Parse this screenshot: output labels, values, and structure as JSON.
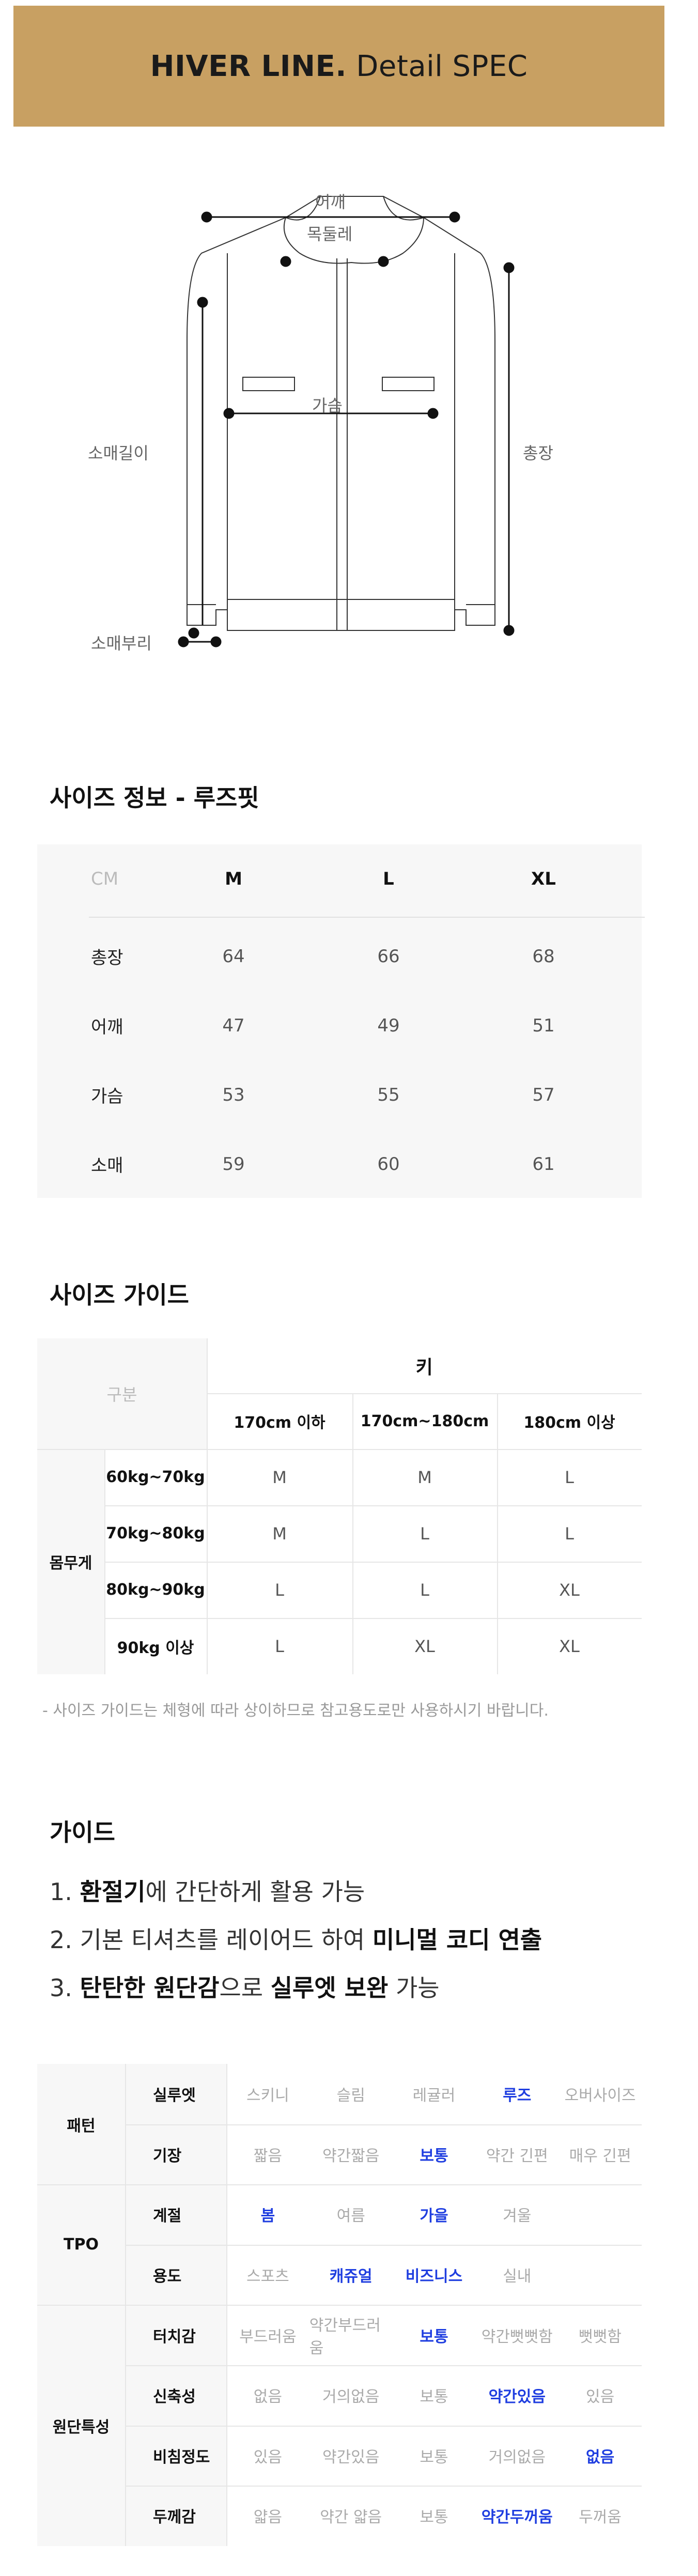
{
  "banner": {
    "brand": "HIVER LINE.",
    "title": "Detail SPEC",
    "color": "#c8a062"
  },
  "diagram": {
    "labels": {
      "shoulder": "어깨",
      "neck": "목둘레",
      "chest": "가슴",
      "sleeve_length": "소매길이",
      "total_length": "총장",
      "cuff": "소매부리"
    }
  },
  "size_info": {
    "title": "사이즈 정보 - 루즈핏",
    "unit": "CM",
    "columns": [
      "M",
      "L",
      "XL"
    ],
    "rows": [
      {
        "label": "총장",
        "values": [
          "64",
          "66",
          "68"
        ]
      },
      {
        "label": "어깨",
        "values": [
          "47",
          "49",
          "51"
        ]
      },
      {
        "label": "가슴",
        "values": [
          "53",
          "55",
          "57"
        ]
      },
      {
        "label": "소매",
        "values": [
          "59",
          "60",
          "61"
        ]
      }
    ]
  },
  "size_guide": {
    "title": "사이즈 가이드",
    "corner": "구분",
    "height_header": "키",
    "height_cols": [
      "170cm 이하",
      "170cm~180cm",
      "180cm 이상"
    ],
    "weight_header": "몸무게",
    "rows": [
      {
        "label": "60kg~70kg",
        "values": [
          "M",
          "M",
          "L"
        ]
      },
      {
        "label": "70kg~80kg",
        "values": [
          "M",
          "L",
          "L"
        ]
      },
      {
        "label": "80kg~90kg",
        "values": [
          "L",
          "L",
          "XL"
        ]
      },
      {
        "label": "90kg 이상",
        "values": [
          "L",
          "XL",
          "XL"
        ]
      }
    ],
    "note": "- 사이즈 가이드는 체형에 따라 상이하므로 참고용도로만 사용하시기 바랍니다."
  },
  "guide": {
    "title": "가이드",
    "items": [
      {
        "n": "1.",
        "parts": [
          {
            "t": "환절기",
            "b": true
          },
          {
            "t": "에 간단하게 활용 가능",
            "b": false
          }
        ]
      },
      {
        "n": "2.",
        "parts": [
          {
            "t": "기본 티셔츠를 레이어드 하여 ",
            "b": false
          },
          {
            "t": "미니멀 코디 연출",
            "b": true
          }
        ]
      },
      {
        "n": "3.",
        "parts": [
          {
            "t": "탄탄한 원단감",
            "b": true
          },
          {
            "t": "으로 ",
            "b": false
          },
          {
            "t": "실루엣 보완",
            "b": true
          },
          {
            "t": " 가능",
            "b": false
          }
        ]
      }
    ]
  },
  "features": {
    "highlight_color": "#1f3ee0",
    "groups": [
      {
        "name": "패턴",
        "rows": [
          0,
          1
        ]
      },
      {
        "name": "TPO",
        "rows": [
          2,
          3
        ]
      },
      {
        "name": "원단특성",
        "rows": [
          4,
          5,
          6,
          7
        ]
      }
    ],
    "rows": [
      {
        "label": "실루엣",
        "options": [
          "스키니",
          "슬림",
          "레귤러",
          "루즈",
          "오버사이즈"
        ],
        "selected": [
          3
        ]
      },
      {
        "label": "기장",
        "options": [
          "짧음",
          "약간짧음",
          "보통",
          "약간 긴편",
          "매우 긴편"
        ],
        "selected": [
          2
        ]
      },
      {
        "label": "계절",
        "options": [
          "봄",
          "여름",
          "가을",
          "겨울"
        ],
        "selected": [
          0,
          2
        ]
      },
      {
        "label": "용도",
        "options": [
          "스포츠",
          "캐쥬얼",
          "비즈니스",
          "실내"
        ],
        "selected": [
          1,
          2
        ]
      },
      {
        "label": "터치감",
        "options": [
          "부드러움",
          "약간부드러움",
          "보통",
          "약간뻣뻣함",
          "뻣뻣함"
        ],
        "selected": [
          2
        ]
      },
      {
        "label": "신축성",
        "options": [
          "없음",
          "거의없음",
          "보통",
          "약간있음",
          "있음"
        ],
        "selected": [
          3
        ]
      },
      {
        "label": "비침정도",
        "options": [
          "있음",
          "약간있음",
          "보통",
          "거의없음",
          "없음"
        ],
        "selected": [
          4
        ]
      },
      {
        "label": "두께감",
        "options": [
          "얇음",
          "약간 얇음",
          "보통",
          "약간두꺼움",
          "두꺼움"
        ],
        "selected": [
          3
        ]
      }
    ]
  }
}
